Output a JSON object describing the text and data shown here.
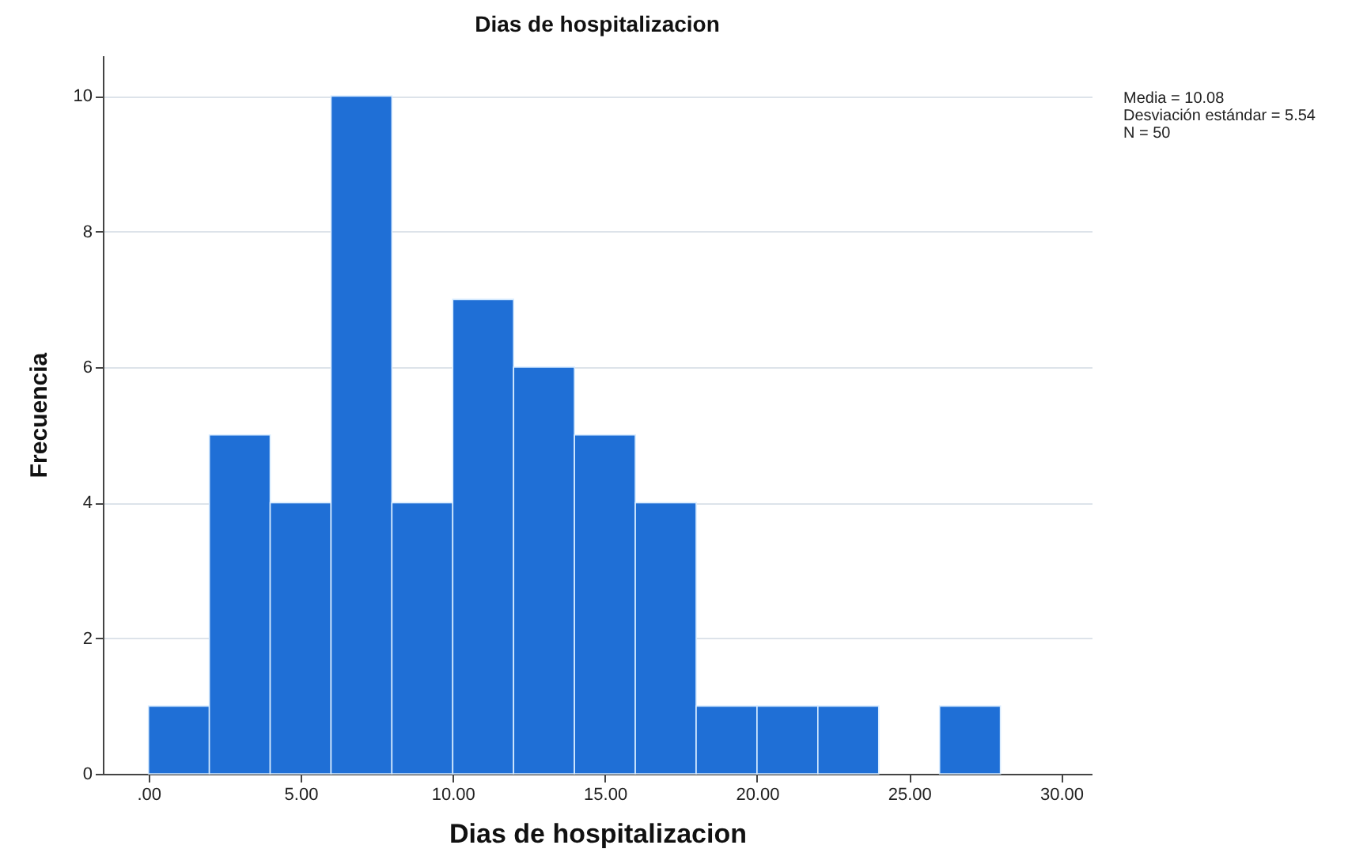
{
  "chart_data": {
    "type": "histogram",
    "title": "Dias de hospitalizacion",
    "xlabel": "Dias de hospitalizacion",
    "ylabel": "Frecuencia",
    "bins": [
      0,
      2,
      4,
      6,
      8,
      10,
      12,
      14,
      16,
      18,
      20,
      22,
      24,
      26,
      28
    ],
    "values": [
      1,
      5,
      4,
      10,
      4,
      7,
      6,
      5,
      4,
      1,
      1,
      1,
      0,
      1
    ],
    "color": "#1f6fd6",
    "xlim": [
      -1.5,
      31
    ],
    "xticks": [
      {
        "value": 0,
        "label": ".00"
      },
      {
        "value": 5,
        "label": "5.00"
      },
      {
        "value": 10,
        "label": "10.00"
      },
      {
        "value": 15,
        "label": "15.00"
      },
      {
        "value": 20,
        "label": "20.00"
      },
      {
        "value": 25,
        "label": "25.00"
      },
      {
        "value": 30,
        "label": "30.00"
      }
    ],
    "ylim": [
      0,
      10.6
    ],
    "yticks": [
      0,
      2,
      4,
      6,
      8,
      10
    ],
    "grid": "y",
    "annotations": [
      "Media = 10.08",
      "Desviación estándar = 5.54",
      "N = 50"
    ]
  }
}
